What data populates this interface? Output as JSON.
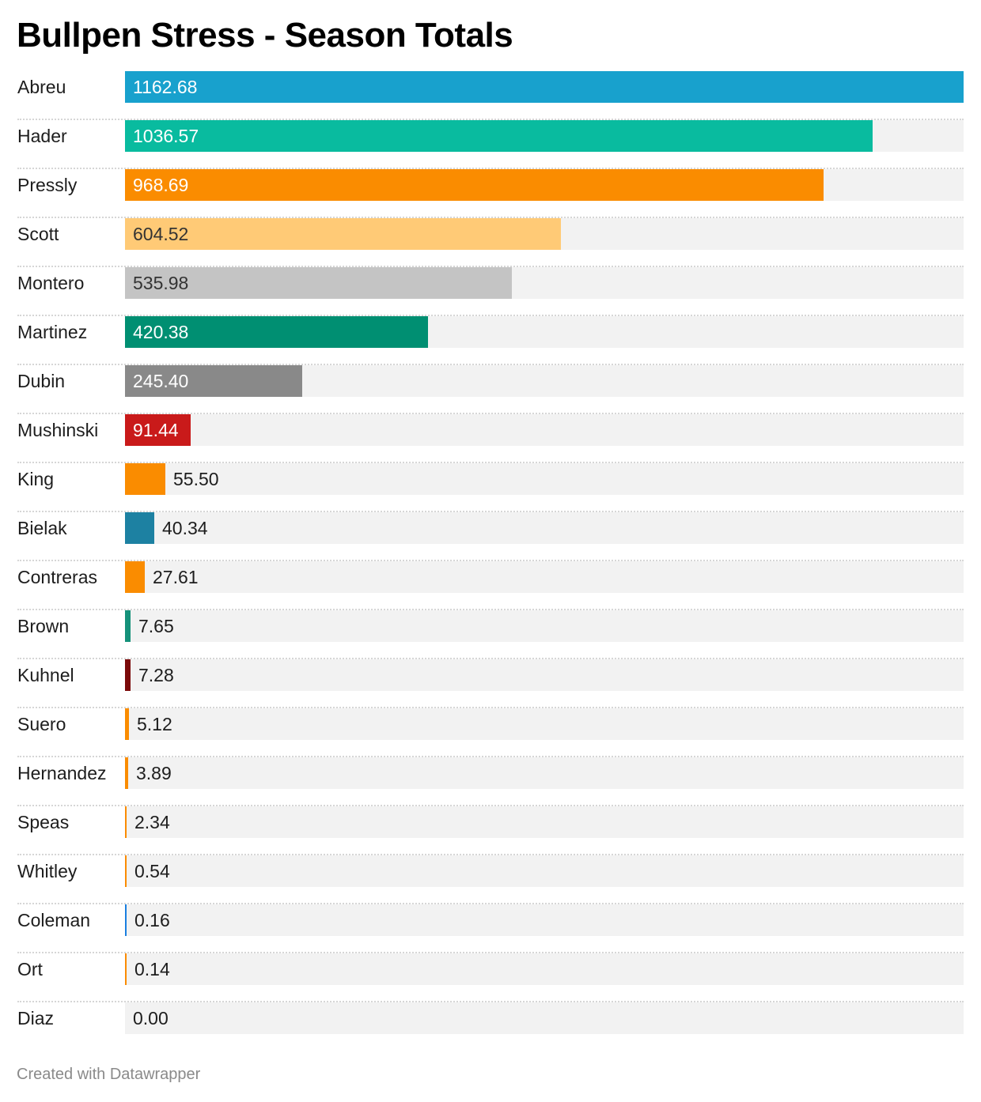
{
  "title": "Bullpen Stress - Season Totals",
  "footer": "Created with Datawrapper",
  "chart_data": {
    "type": "bar",
    "orientation": "horizontal",
    "title": "Bullpen Stress - Season Totals",
    "xlim": [
      0,
      1162.68
    ],
    "categories": [
      "Abreu",
      "Hader",
      "Pressly",
      "Scott",
      "Montero",
      "Martinez",
      "Dubin",
      "Mushinski",
      "King",
      "Bielak",
      "Contreras",
      "Brown",
      "Kuhnel",
      "Suero",
      "Hernandez",
      "Speas",
      "Whitley",
      "Coleman",
      "Ort",
      "Diaz"
    ],
    "values": [
      1162.68,
      1036.57,
      968.69,
      604.52,
      535.98,
      420.38,
      245.4,
      91.44,
      55.5,
      40.34,
      27.61,
      7.65,
      7.28,
      5.12,
      3.89,
      2.34,
      0.54,
      0.16,
      0.14,
      0.0
    ],
    "value_labels": [
      "1162.68",
      "1036.57",
      "968.69",
      "604.52",
      "535.98",
      "420.38",
      "245.40",
      "91.44",
      "55.50",
      "40.34",
      "27.61",
      "7.65",
      "7.28",
      "5.12",
      "3.89",
      "2.34",
      "0.54",
      "0.16",
      "0.14",
      "0.00"
    ],
    "colors": [
      "#18a1cd",
      "#09bb9f",
      "#fa8c00",
      "#ffca76",
      "#c4c4c4",
      "#008f72",
      "#898989",
      "#c91a1a",
      "#fa8c00",
      "#1d81a2",
      "#fa8c00",
      "#15917a",
      "#7b0a0a",
      "#fa8c00",
      "#fa8c00",
      "#fa8c00",
      "#fa8c00",
      "#1a7fe0",
      "#fa8c00",
      "#fa8c00"
    ],
    "label_text_colors": [
      "#ffffff",
      "#ffffff",
      "#ffffff",
      "#333333",
      "#333333",
      "#ffffff",
      "#ffffff",
      "#ffffff",
      "#1d1d1d",
      "#1d1d1d",
      "#1d1d1d",
      "#1d1d1d",
      "#1d1d1d",
      "#1d1d1d",
      "#1d1d1d",
      "#1d1d1d",
      "#1d1d1d",
      "#1d1d1d",
      "#1d1d1d",
      "#1d1d1d"
    ],
    "track_color": "#f2f2f2",
    "grid": false,
    "legend": "none"
  }
}
